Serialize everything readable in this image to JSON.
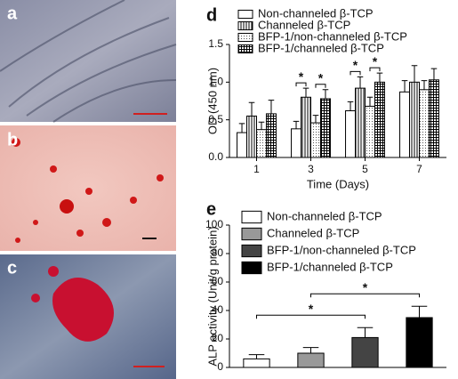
{
  "panels": [
    "a",
    "b",
    "c"
  ],
  "chart_data": [
    {
      "type": "bar",
      "label": "d",
      "ylabel": "OD (450 nm)",
      "xlabel": "Time (Days)",
      "categories": [
        "1",
        "3",
        "5",
        "7"
      ],
      "ylim": [
        0,
        1.5
      ],
      "yticks": [
        {
          "value": 0,
          "label": "0.0"
        },
        0.5,
        {
          "value": 1,
          "label": "1.0"
        },
        1.5
      ],
      "series": [
        {
          "name": "Non-channeled β-TCP",
          "color": "#ffffff",
          "pattern": "none",
          "values": [
            0.33,
            0.38,
            0.62,
            0.87
          ],
          "errors": [
            0.12,
            0.1,
            0.12,
            0.15
          ]
        },
        {
          "name": "Channeled β-TCP",
          "color": "#ffffff",
          "pattern": "vertical-lines",
          "values": [
            0.55,
            0.8,
            0.92,
            1.0
          ],
          "errors": [
            0.18,
            0.12,
            0.15,
            0.22
          ]
        },
        {
          "name": "BFP-1/non-channeled β-TCP",
          "color": "#ffffff",
          "pattern": "dots",
          "values": [
            0.37,
            0.46,
            0.68,
            0.9
          ],
          "errors": [
            0.1,
            0.1,
            0.12,
            0.12
          ]
        },
        {
          "name": "BFP-1/channeled β-TCP",
          "color": "#ffffff",
          "pattern": "grid",
          "values": [
            0.58,
            0.78,
            1.0,
            1.03
          ],
          "errors": [
            0.18,
            0.12,
            0.12,
            0.15
          ]
        }
      ],
      "annotations": [
        {
          "text": "*",
          "category": 1,
          "series": [
            0,
            1
          ]
        },
        {
          "text": "*",
          "category": 1,
          "series": [
            2,
            3
          ]
        },
        {
          "text": "*",
          "category": 2,
          "series": [
            0,
            1
          ]
        },
        {
          "text": "*",
          "category": 2,
          "series": [
            2,
            3
          ]
        }
      ]
    },
    {
      "type": "bar",
      "label": "e",
      "ylabel": "ALP activity (Unit/g protein)",
      "ylim": [
        0,
        100
      ],
      "yticks": [
        0,
        20,
        40,
        60,
        80,
        100
      ],
      "series": [
        {
          "name": "Non-channeled β-TCP",
          "color": "#ffffff",
          "pattern": "none",
          "values": [
            6
          ],
          "errors": [
            3
          ]
        },
        {
          "name": "Channeled β-TCP",
          "color": "#999999",
          "pattern": "none",
          "values": [
            10
          ],
          "errors": [
            4
          ]
        },
        {
          "name": "BFP-1/non-channeled β-TCP",
          "color": "#444444",
          "pattern": "none",
          "values": [
            21
          ],
          "errors": [
            7
          ]
        },
        {
          "name": "BFP-1/channeled β-TCP",
          "color": "#000000",
          "pattern": "none",
          "values": [
            35
          ],
          "errors": [
            8
          ]
        }
      ],
      "annotations": [
        {
          "text": "*",
          "series": [
            0,
            2
          ]
        },
        {
          "text": "*",
          "series": [
            1,
            3
          ]
        }
      ]
    }
  ]
}
